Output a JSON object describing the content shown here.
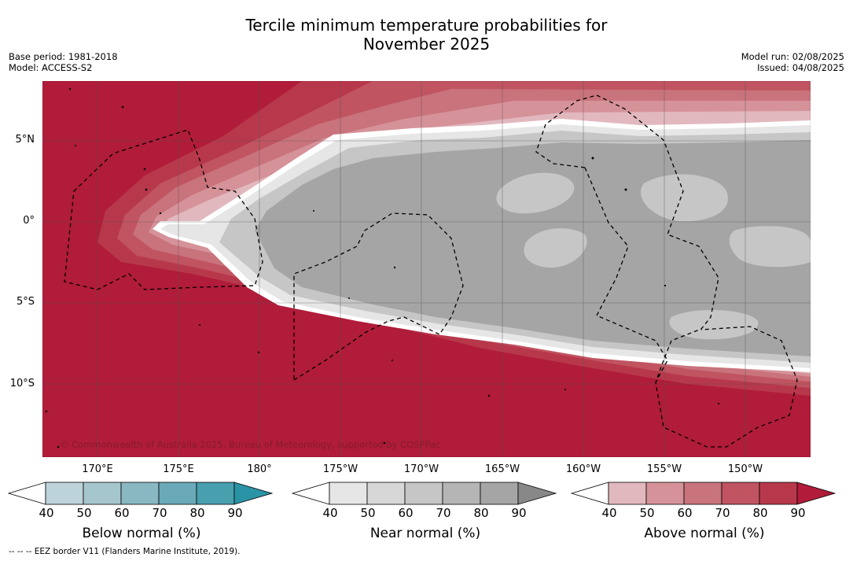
{
  "title_line1": "Tercile minimum temperature probabilities for",
  "title_line2": "November 2025",
  "meta": {
    "base_period": "Base period: 1981-2018",
    "model": "Model: ACCESS-S2",
    "model_run": "Model run: 02/08/2025",
    "issued": "Issued: 04/08/2025"
  },
  "map": {
    "copyright": "© Commonwealth of Australia 2025, Bureau of Meteorology, supported by COSPPac",
    "lat_labels": [
      "5°N",
      "0°",
      "5°S",
      "10°S"
    ],
    "lon_labels": [
      "170°E",
      "175°E",
      "180°",
      "175°W",
      "170°W",
      "165°W",
      "160°W",
      "155°W",
      "150°W"
    ],
    "colors": {
      "above_90": "#b01c39",
      "near_80": "#a5a5a5",
      "near_70": "#c6c6c6"
    }
  },
  "colorbars": {
    "below": {
      "label": "Below normal (%)",
      "ticks": [
        "40",
        "50",
        "60",
        "70",
        "80",
        "90"
      ],
      "colors": [
        "#ffffff",
        "#bdd3da",
        "#a6c6cd",
        "#89b7c2",
        "#6aa9b7",
        "#489fae",
        "#2a93a6"
      ]
    },
    "near": {
      "label": "Near normal (%)",
      "ticks": [
        "40",
        "50",
        "60",
        "70",
        "80",
        "90"
      ],
      "colors": [
        "#ffffff",
        "#e6e6e6",
        "#d7d7d7",
        "#c6c6c6",
        "#b5b5b5",
        "#a5a5a5",
        "#888888"
      ]
    },
    "above": {
      "label": "Above normal (%)",
      "ticks": [
        "40",
        "50",
        "60",
        "70",
        "80",
        "90"
      ],
      "colors": [
        "#ffffff",
        "#e2b8bf",
        "#d69299",
        "#c9737c",
        "#c05461",
        "#b8384b",
        "#b01c39"
      ]
    }
  },
  "footer": "--  --  -- EEZ border V11 (Flanders Marine Institute, 2019)."
}
